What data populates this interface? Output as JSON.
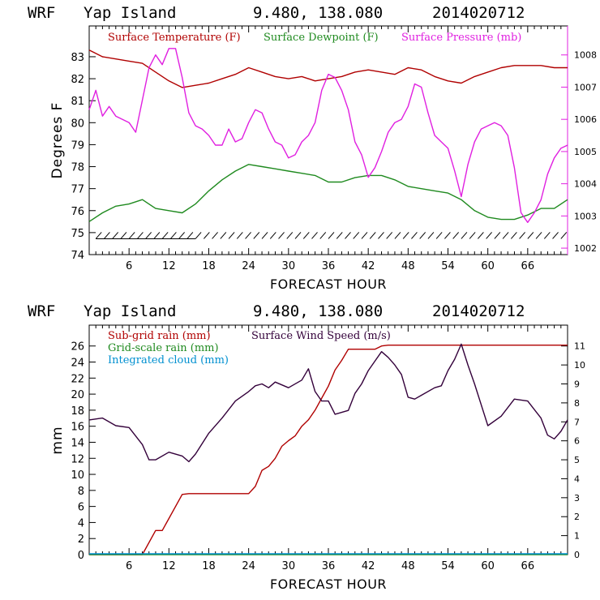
{
  "colors": {
    "temperature": "#b00000",
    "dewpoint": "#1f8a1f",
    "pressure": "#e020e0",
    "wind": "#33003a",
    "subgrid": "#b00000",
    "gridscale": "#1f8a1f",
    "cloud": "#0090d0",
    "barbs": "#000000"
  },
  "chart_data": [
    {
      "type": "line",
      "model": "WRF",
      "location": "Yap Island",
      "coords": "9.480, 138.080",
      "init": "2014020712",
      "xlabel": "FORECAST HOUR",
      "ylabel": "Degrees F",
      "xlim": [
        0,
        72
      ],
      "xticks": [
        6,
        12,
        18,
        24,
        30,
        36,
        42,
        48,
        54,
        60,
        66
      ],
      "ylim": [
        74,
        84.4
      ],
      "yticks": [
        74,
        75,
        76,
        77,
        78,
        79,
        80,
        81,
        82,
        83
      ],
      "y2lim": [
        1001.8,
        1008.9
      ],
      "y2ticks": [
        1002,
        1003,
        1004,
        1005,
        1006,
        1007,
        1008
      ],
      "legend": [
        "Surface Temperature (F)",
        "Surface Dewpoint (F)",
        "Surface Pressure (mb)"
      ],
      "series": [
        {
          "name": "Surface Temperature (F)",
          "axis": "left",
          "color_key": "temperature",
          "x": [
            0,
            2,
            4,
            6,
            8,
            10,
            12,
            14,
            16,
            18,
            20,
            22,
            24,
            26,
            28,
            30,
            32,
            34,
            36,
            38,
            40,
            42,
            44,
            46,
            48,
            50,
            52,
            54,
            56,
            58,
            60,
            62,
            64,
            66,
            68,
            70,
            72
          ],
          "y": [
            83.3,
            83.0,
            82.9,
            82.8,
            82.7,
            82.3,
            81.9,
            81.6,
            81.7,
            81.8,
            82.0,
            82.2,
            82.5,
            82.3,
            82.1,
            82.0,
            82.1,
            81.9,
            82.0,
            82.1,
            82.3,
            82.4,
            82.3,
            82.2,
            82.5,
            82.4,
            82.1,
            81.9,
            81.8,
            82.1,
            82.3,
            82.5,
            82.6,
            82.6,
            82.6,
            82.5,
            82.5
          ]
        },
        {
          "name": "Surface Dewpoint (F)",
          "axis": "left",
          "color_key": "dewpoint",
          "x": [
            0,
            2,
            4,
            6,
            8,
            10,
            12,
            14,
            16,
            18,
            20,
            22,
            24,
            26,
            28,
            30,
            32,
            34,
            36,
            38,
            40,
            42,
            44,
            46,
            48,
            50,
            52,
            54,
            56,
            58,
            60,
            62,
            64,
            66,
            68,
            70,
            72
          ],
          "y": [
            75.5,
            75.9,
            76.2,
            76.3,
            76.5,
            76.1,
            76.0,
            75.9,
            76.3,
            76.9,
            77.4,
            77.8,
            78.1,
            78.0,
            77.9,
            77.8,
            77.7,
            77.6,
            77.3,
            77.3,
            77.5,
            77.6,
            77.6,
            77.4,
            77.1,
            77.0,
            76.9,
            76.8,
            76.5,
            76.0,
            75.7,
            75.6,
            75.6,
            75.8,
            76.1,
            76.1,
            76.5
          ]
        },
        {
          "name": "Surface Pressure (mb)",
          "axis": "right",
          "color_key": "pressure",
          "x": [
            0,
            1,
            2,
            3,
            4,
            5,
            6,
            7,
            8,
            9,
            10,
            11,
            12,
            13,
            14,
            15,
            16,
            17,
            18,
            19,
            20,
            21,
            22,
            23,
            24,
            25,
            26,
            27,
            28,
            29,
            30,
            31,
            32,
            33,
            34,
            35,
            36,
            37,
            38,
            39,
            40,
            41,
            42,
            43,
            44,
            45,
            46,
            47,
            48,
            49,
            50,
            51,
            52,
            53,
            54,
            55,
            56,
            57,
            58,
            59,
            60,
            61,
            62,
            63,
            64,
            65,
            66,
            67,
            68,
            69,
            70,
            71,
            72
          ],
          "y": [
            1006.3,
            1006.9,
            1006.1,
            1006.4,
            1006.1,
            1006.0,
            1005.9,
            1005.6,
            1006.6,
            1007.6,
            1008.0,
            1007.7,
            1008.2,
            1008.2,
            1007.3,
            1006.2,
            1005.8,
            1005.7,
            1005.5,
            1005.2,
            1005.2,
            1005.7,
            1005.3,
            1005.4,
            1005.9,
            1006.3,
            1006.2,
            1005.7,
            1005.3,
            1005.2,
            1004.8,
            1004.9,
            1005.3,
            1005.5,
            1005.9,
            1006.9,
            1007.4,
            1007.3,
            1006.9,
            1006.3,
            1005.3,
            1004.9,
            1004.2,
            1004.5,
            1005.0,
            1005.6,
            1005.9,
            1006.0,
            1006.4,
            1007.1,
            1007.0,
            1006.2,
            1005.5,
            1005.3,
            1005.1,
            1004.4,
            1003.6,
            1004.6,
            1005.3,
            1005.7,
            1005.8,
            1005.9,
            1005.8,
            1005.5,
            1004.5,
            1003.1,
            1002.8,
            1003.1,
            1003.5,
            1004.3,
            1004.8,
            1005.1,
            1005.2
          ]
        }
      ],
      "wind_barbs": "surface wind barbs along 74.7 F"
    },
    {
      "type": "line",
      "model": "WRF",
      "location": "Yap Island",
      "coords": "9.480, 138.080",
      "init": "2014020712",
      "xlabel": "FORECAST HOUR",
      "ylabel": "mm",
      "xlim": [
        0,
        72
      ],
      "xticks": [
        6,
        12,
        18,
        24,
        30,
        36,
        42,
        48,
        54,
        60,
        66
      ],
      "ylim": [
        0,
        28.6
      ],
      "yticks": [
        0,
        2,
        4,
        6,
        8,
        10,
        12,
        14,
        16,
        18,
        20,
        22,
        24,
        26
      ],
      "y2lim": [
        0,
        12.1
      ],
      "y2ticks": [
        0,
        1,
        2,
        3,
        4,
        5,
        6,
        7,
        8,
        9,
        10,
        11
      ],
      "legend": [
        "Sub-grid rain (mm)",
        "Grid-scale rain (mm)",
        "Integrated cloud (mm)",
        "Surface Wind Speed (m/s)"
      ],
      "series": [
        {
          "name": "Sub-grid rain (mm)",
          "axis": "left",
          "color_key": "subgrid",
          "x": [
            0,
            8,
            10,
            11,
            12,
            14,
            15,
            16,
            18,
            20,
            22,
            24,
            25,
            26,
            27,
            28,
            29,
            30,
            31,
            32,
            33,
            34,
            35,
            36,
            37,
            38,
            39,
            40,
            41,
            42,
            43,
            44,
            45,
            48,
            54,
            60,
            66,
            72
          ],
          "y": [
            0,
            0,
            3,
            3,
            4.5,
            7.5,
            7.6,
            7.6,
            7.6,
            7.6,
            7.6,
            7.6,
            8.5,
            10.5,
            11.0,
            12.0,
            13.5,
            14.2,
            14.8,
            16.0,
            16.8,
            18.0,
            19.5,
            21.0,
            23.0,
            24.2,
            25.6,
            25.6,
            25.6,
            25.6,
            25.6,
            26.0,
            26.1,
            26.1,
            26.1,
            26.1,
            26.1,
            26.1
          ]
        },
        {
          "name": "Grid-scale rain (mm)",
          "axis": "left",
          "color_key": "gridscale",
          "x": [
            0,
            72
          ],
          "y": [
            0,
            0
          ]
        },
        {
          "name": "Integrated cloud (mm)",
          "axis": "left",
          "color_key": "cloud",
          "x": [
            0,
            72
          ],
          "y": [
            0.1,
            0.1
          ]
        },
        {
          "name": "Surface Wind Speed (m/s)",
          "axis": "right",
          "color_key": "wind",
          "x": [
            0,
            2,
            4,
            6,
            8,
            9,
            10,
            12,
            14,
            15,
            16,
            18,
            20,
            22,
            24,
            25,
            26,
            27,
            28,
            30,
            32,
            33,
            34,
            35,
            36,
            37,
            38,
            39,
            40,
            41,
            42,
            43,
            44,
            45,
            46,
            47,
            48,
            49,
            50,
            52,
            53,
            54,
            55,
            56,
            57,
            58,
            60,
            62,
            64,
            66,
            68,
            69,
            70,
            71,
            72
          ],
          "y": [
            7.1,
            7.2,
            6.8,
            6.7,
            5.8,
            5.0,
            5.0,
            5.4,
            5.2,
            4.9,
            5.3,
            6.4,
            7.2,
            8.1,
            8.6,
            8.9,
            9.0,
            8.8,
            9.1,
            8.8,
            9.2,
            9.8,
            8.6,
            8.1,
            8.1,
            7.4,
            7.5,
            7.6,
            8.5,
            9.0,
            9.7,
            10.2,
            10.7,
            10.4,
            10.0,
            9.5,
            8.3,
            8.2,
            8.4,
            8.8,
            8.9,
            9.7,
            10.3,
            11.1,
            10.0,
            9.0,
            6.8,
            7.3,
            8.2,
            8.1,
            7.2,
            6.3,
            6.1,
            6.5,
            7.1
          ]
        }
      ]
    }
  ]
}
